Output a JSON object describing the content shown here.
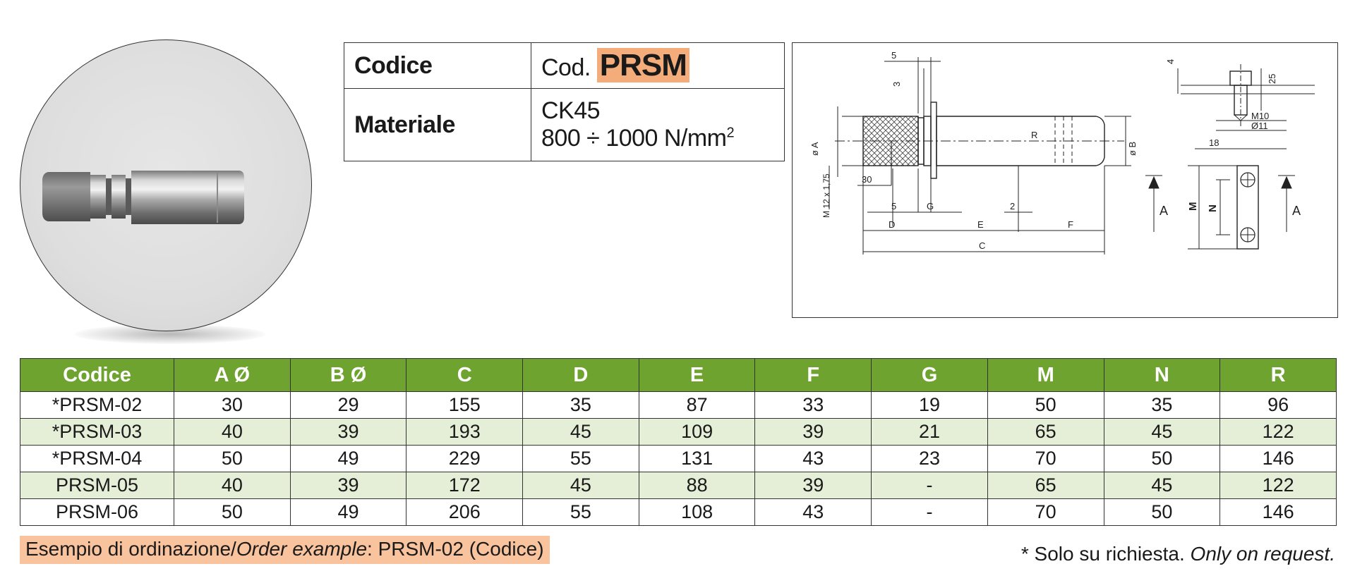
{
  "spec_table": {
    "codice_label": "Codice",
    "codice_prefix": "Cod.",
    "codice_value": "PRSM",
    "materiale_label": "Materiale",
    "materiale_line1": "CK45",
    "materiale_line2": "800 ÷ 1000 N/mm",
    "materiale_sup": "2"
  },
  "drawing": {
    "dim_5_top": "5",
    "dim_3": "3",
    "dim_phiA": "ø A",
    "dim_phiB": "ø B",
    "dim_R": "R",
    "dim_thread": "M 12 x 1,75",
    "dim_30": "30",
    "dim_5_low": "5",
    "dim_G": "G",
    "dim_2": "2",
    "dim_D": "D",
    "dim_E": "E",
    "dim_F": "F",
    "dim_C": "C",
    "dim_4": "4",
    "dim_25": "25",
    "dim_M10": "M10",
    "dim_phi11": "Ø11",
    "dim_18": "18",
    "dim_M": "M",
    "dim_N": "N",
    "view_A_left": "A",
    "view_A_right": "A"
  },
  "table": {
    "headers": [
      "Codice",
      "A Ø",
      "B Ø",
      "C",
      "D",
      "E",
      "F",
      "G",
      "M",
      "N",
      "R"
    ],
    "rows": [
      [
        "*PRSM-02",
        "30",
        "29",
        "155",
        "35",
        "87",
        "33",
        "19",
        "50",
        "35",
        "96"
      ],
      [
        "*PRSM-03",
        "40",
        "39",
        "193",
        "45",
        "109",
        "39",
        "21",
        "65",
        "45",
        "122"
      ],
      [
        "*PRSM-04",
        "50",
        "49",
        "229",
        "55",
        "131",
        "43",
        "23",
        "70",
        "50",
        "146"
      ],
      [
        "PRSM-05",
        "40",
        "39",
        "172",
        "45",
        "88",
        "39",
        "-",
        "65",
        "45",
        "122"
      ],
      [
        "PRSM-06",
        "50",
        "49",
        "206",
        "55",
        "108",
        "43",
        "-",
        "70",
        "50",
        "146"
      ]
    ]
  },
  "footer": {
    "order_prefix": "Esempio di ordinazione/",
    "order_italic": "Order example",
    "order_suffix": ": PRSM-02 (Codice)",
    "note_prefix": "* Solo su richiesta. ",
    "note_italic": "Only on request."
  },
  "colors": {
    "header_green": "#6fa32f",
    "row_alt": "#e5efd7",
    "badge_orange": "#f4ad7a",
    "order_bg": "#f8c39d"
  }
}
